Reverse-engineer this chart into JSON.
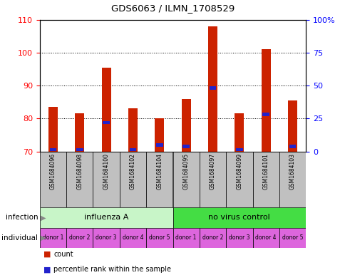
{
  "title": "GDS6063 / ILMN_1708529",
  "samples": [
    "GSM1684096",
    "GSM1684098",
    "GSM1684100",
    "GSM1684102",
    "GSM1684104",
    "GSM1684095",
    "GSM1684097",
    "GSM1684099",
    "GSM1684101",
    "GSM1684103"
  ],
  "count_values": [
    83.5,
    81.5,
    95.5,
    83,
    80,
    86,
    108,
    81.5,
    101,
    85.5
  ],
  "percentile_values": [
    1.5,
    1.5,
    22,
    1.5,
    5,
    4,
    48,
    1.5,
    28,
    4
  ],
  "bar_bottom": 70,
  "ylim_left": [
    70,
    110
  ],
  "ylim_right": [
    0,
    100
  ],
  "yticks_left": [
    70,
    80,
    90,
    100,
    110
  ],
  "yticks_right": [
    0,
    25,
    50,
    75,
    100
  ],
  "yticklabels_right": [
    "0",
    "25",
    "50",
    "75",
    "100%"
  ],
  "infection_groups": [
    {
      "label": "influenza A",
      "start": 0,
      "end": 5,
      "color": "#C8F5C8"
    },
    {
      "label": "no virus control",
      "start": 5,
      "end": 10,
      "color": "#44DD44"
    }
  ],
  "individual_labels": [
    "donor 1",
    "donor 2",
    "donor 3",
    "donor 4",
    "donor 5",
    "donor 1",
    "donor 2",
    "donor 3",
    "donor 4",
    "donor 5"
  ],
  "individual_color": "#DD66DD",
  "bar_color": "#CC2200",
  "percentile_color": "#2222CC",
  "bar_width": 0.35,
  "grid_color": "#000000",
  "bg_plot": "#FFFFFF",
  "bg_sample_row": "#C0C0C0"
}
